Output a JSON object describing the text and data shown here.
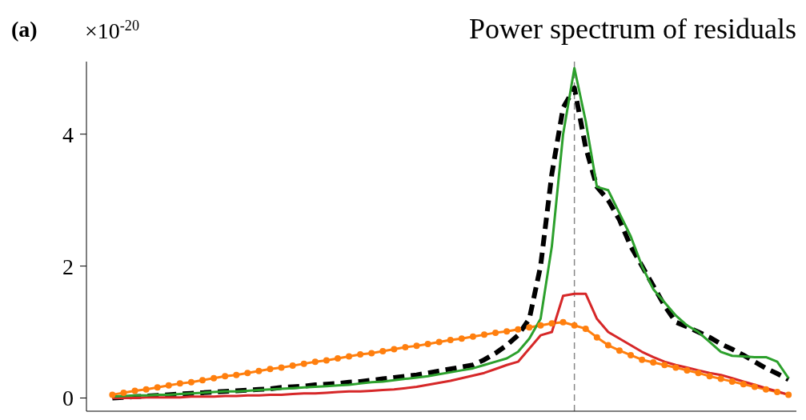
{
  "chart_data": {
    "type": "line",
    "title": "Power spectrum of residuals",
    "annotations": [
      "(a)",
      "×10$^{-20}$"
    ],
    "categories": [
      null,
      null,
      null,
      null,
      null,
      null,
      null,
      null,
      null,
      null,
      null,
      null,
      null,
      null,
      null,
      null,
      null,
      null,
      null,
      null,
      null,
      null,
      null,
      null,
      null,
      null,
      null,
      null,
      null,
      null,
      null,
      null,
      null,
      null,
      null,
      null,
      null,
      null,
      null,
      null,
      null,
      null,
      null,
      null,
      null,
      null,
      null,
      null,
      null,
      null,
      null,
      null,
      null,
      null,
      null,
      null,
      null,
      null,
      null,
      null,
      null
    ],
    "ylim": [
      -0.2,
      5.1
    ],
    "yticks": [
      0,
      2,
      4
    ],
    "tick_labels": "y",
    "series": [
      {
        "color": "#ff7f0e",
        "marker": "circle",
        "values": [
          0.05,
          0.08,
          0.11,
          0.13,
          0.16,
          0.19,
          0.22,
          0.24,
          0.27,
          0.3,
          0.33,
          0.35,
          0.38,
          0.41,
          0.44,
          0.46,
          0.49,
          0.52,
          0.55,
          0.57,
          0.6,
          0.63,
          0.66,
          0.68,
          0.71,
          0.74,
          0.77,
          0.79,
          0.82,
          0.85,
          0.88,
          0.9,
          0.93,
          0.96,
          0.99,
          1.01,
          1.04,
          1.07,
          1.1,
          1.13,
          1.15,
          1.1,
          1.05,
          0.92,
          0.8,
          0.72,
          0.65,
          0.58,
          0.54,
          0.5,
          0.46,
          0.42,
          0.38,
          0.33,
          0.29,
          0.25,
          0.21,
          0.17,
          0.13,
          0.09,
          0.05
        ]
      },
      {
        "color": "#000000",
        "line_style": "dashed",
        "values": [
          0,
          0.01,
          0.02,
          0.03,
          0.04,
          0.05,
          0.06,
          0.07,
          0.08,
          0.09,
          0.1,
          0.11,
          0.12,
          0.13,
          0.14,
          0.16,
          0.17,
          0.18,
          0.2,
          0.21,
          0.22,
          0.24,
          0.25,
          0.27,
          0.29,
          0.31,
          0.33,
          0.35,
          0.38,
          0.41,
          0.44,
          0.47,
          0.5,
          0.58,
          0.68,
          0.8,
          0.95,
          1.2,
          2.0,
          3.4,
          4.4,
          4.7,
          3.8,
          3.2,
          3.0,
          2.7,
          2.3,
          2.0,
          1.7,
          1.4,
          1.15,
          1.08,
          1.0,
          0.92,
          0.82,
          0.74,
          0.65,
          0.55,
          0.45,
          0.37,
          0.28
        ]
      },
      {
        "color": "#d62728",
        "values": [
          0,
          0,
          0,
          0.01,
          0.01,
          0.01,
          0.01,
          0.02,
          0.02,
          0.02,
          0.03,
          0.03,
          0.04,
          0.04,
          0.05,
          0.05,
          0.06,
          0.07,
          0.07,
          0.08,
          0.09,
          0.1,
          0.1,
          0.11,
          0.12,
          0.13,
          0.15,
          0.17,
          0.2,
          0.23,
          0.26,
          0.3,
          0.34,
          0.38,
          0.44,
          0.5,
          0.55,
          0.75,
          0.95,
          1.0,
          1.55,
          1.58,
          1.58,
          1.2,
          1.0,
          0.9,
          0.8,
          0.7,
          0.62,
          0.55,
          0.5,
          0.46,
          0.42,
          0.38,
          0.35,
          0.3,
          0.25,
          0.2,
          0.15,
          0.1,
          0.05
        ]
      },
      {
        "color": "#2ca02c",
        "values": [
          0.02,
          0.03,
          0.04,
          0.04,
          0.05,
          0.05,
          0.06,
          0.07,
          0.08,
          0.09,
          0.1,
          0.1,
          0.11,
          0.12,
          0.13,
          0.14,
          0.15,
          0.16,
          0.17,
          0.18,
          0.19,
          0.2,
          0.22,
          0.24,
          0.25,
          0.27,
          0.29,
          0.31,
          0.33,
          0.36,
          0.39,
          0.42,
          0.45,
          0.5,
          0.55,
          0.6,
          0.7,
          0.9,
          1.2,
          2.3,
          4.0,
          5.0,
          4.2,
          3.2,
          3.15,
          2.8,
          2.45,
          2.0,
          1.65,
          1.45,
          1.25,
          1.1,
          1.0,
          0.85,
          0.7,
          0.64,
          0.63,
          0.62,
          0.62,
          0.55,
          0.3
        ]
      }
    ]
  }
}
